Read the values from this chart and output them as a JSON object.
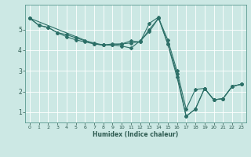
{
  "xlabel": "Humidex (Indice chaleur)",
  "bg_color": "#cce8e4",
  "line_color": "#2d7068",
  "grid_color": "#ffffff",
  "xlim": [
    -0.5,
    23.5
  ],
  "ylim": [
    0.5,
    6.2
  ],
  "xticks": [
    0,
    1,
    2,
    3,
    4,
    5,
    6,
    7,
    8,
    9,
    10,
    11,
    12,
    13,
    14,
    15,
    16,
    17,
    18,
    19,
    20,
    21,
    22,
    23
  ],
  "yticks": [
    1,
    2,
    3,
    4,
    5
  ],
  "lines": [
    {
      "x": [
        0,
        1,
        2,
        3,
        4,
        5,
        6,
        7,
        8,
        9,
        10,
        11,
        12,
        13,
        14,
        15,
        16,
        17,
        18,
        19,
        20,
        21,
        22,
        23
      ],
      "y": [
        5.55,
        5.2,
        5.1,
        4.85,
        4.75,
        4.6,
        4.45,
        4.35,
        4.25,
        4.3,
        4.3,
        4.35,
        4.4,
        5.3,
        5.6,
        4.3,
        2.85,
        0.8,
        1.15,
        2.15,
        1.6,
        1.65,
        2.25,
        2.35
      ]
    },
    {
      "x": [
        0,
        1,
        2,
        3,
        4,
        5,
        6,
        7,
        8,
        9,
        10,
        11,
        12,
        13,
        14,
        15,
        16,
        17,
        18,
        19,
        20,
        21,
        22,
        23
      ],
      "y": [
        5.55,
        5.2,
        5.1,
        4.85,
        4.65,
        4.5,
        4.4,
        4.3,
        4.25,
        4.25,
        4.3,
        4.45,
        4.4,
        5.0,
        5.55,
        4.3,
        2.7,
        0.8,
        1.15,
        2.15,
        1.6,
        1.65,
        2.25,
        2.35
      ]
    },
    {
      "x": [
        0,
        7,
        8,
        9,
        10,
        11,
        12,
        13,
        14,
        15,
        16,
        17,
        18,
        19,
        20,
        21,
        22,
        23
      ],
      "y": [
        5.55,
        4.3,
        4.25,
        4.25,
        4.2,
        4.1,
        4.45,
        4.9,
        5.55,
        4.5,
        3.0,
        1.15,
        2.1,
        2.15,
        1.6,
        1.65,
        2.25,
        2.35
      ]
    }
  ]
}
